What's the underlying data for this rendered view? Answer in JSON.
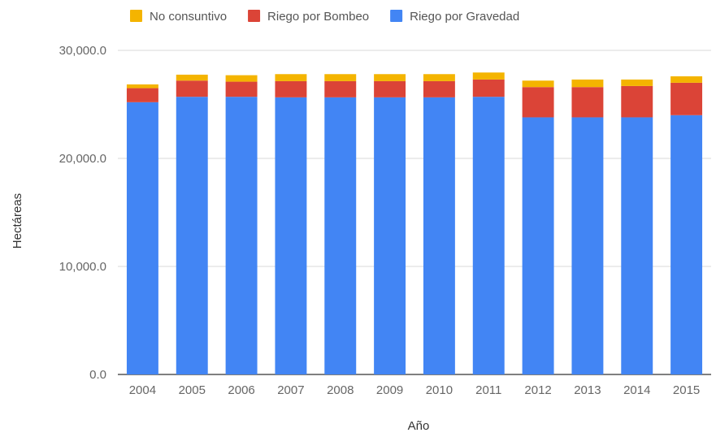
{
  "chart_data": {
    "type": "bar",
    "stacked": true,
    "title": "",
    "xlabel": "Año",
    "ylabel": "Hectáreas",
    "ylim": [
      0,
      30000
    ],
    "yticks": [
      0,
      10000,
      20000,
      30000
    ],
    "ytick_labels": [
      "0.0",
      "10,000.0",
      "20,000.0",
      "30,000.0"
    ],
    "grid": true,
    "legend_position": "top",
    "categories": [
      "2004",
      "2005",
      "2006",
      "2007",
      "2008",
      "2009",
      "2010",
      "2011",
      "2012",
      "2013",
      "2014",
      "2015"
    ],
    "series": [
      {
        "name": "Riego por Gravedad",
        "color": "#4285f4",
        "values": [
          25200,
          25700,
          25700,
          25650,
          25650,
          25650,
          25650,
          25700,
          23800,
          23800,
          23800,
          24000
        ]
      },
      {
        "name": "Riego por Bombeo",
        "color": "#db4437",
        "values": [
          1300,
          1500,
          1400,
          1500,
          1500,
          1500,
          1500,
          1600,
          2800,
          2800,
          2900,
          3000
        ]
      },
      {
        "name": "No consuntivo",
        "color": "#f4b400",
        "values": [
          350,
          550,
          600,
          650,
          650,
          650,
          650,
          650,
          600,
          700,
          600,
          600
        ]
      }
    ],
    "legend_order": [
      "No consuntivo",
      "Riego por Bombeo",
      "Riego por Gravedad"
    ]
  }
}
